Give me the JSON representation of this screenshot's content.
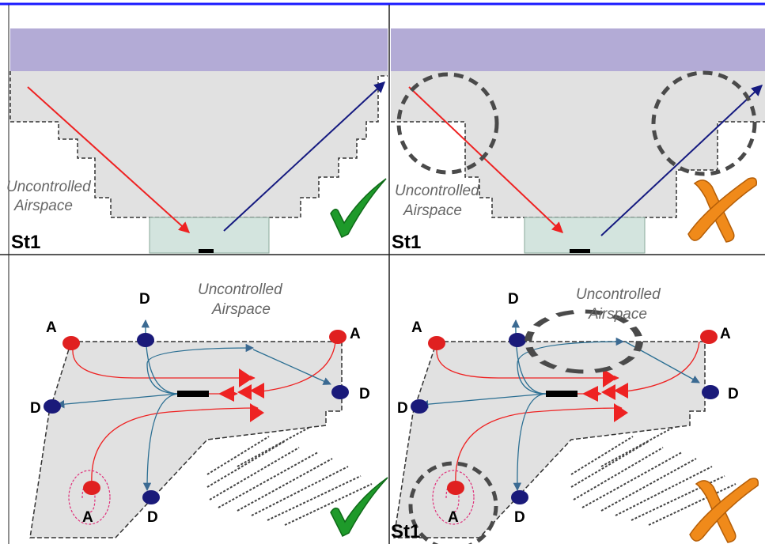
{
  "panels": [
    {
      "id": "top-left",
      "stage_label": "St1",
      "airspace_label": [
        "Uncontrolled",
        "Airspace"
      ],
      "verdict": "check"
    },
    {
      "id": "top-right",
      "stage_label": "St1",
      "airspace_label": [
        "Uncontrolled",
        "Airspace"
      ],
      "verdict": "cross"
    },
    {
      "id": "bottom-left",
      "stage_label": "",
      "airspace_label": [
        "Uncontrolled",
        "Airspace"
      ],
      "node_labels": {
        "arrival": "A",
        "departure": "D"
      },
      "verdict": "check"
    },
    {
      "id": "bottom-right",
      "stage_label": "St1",
      "airspace_label": [
        "Uncontrolled",
        "Airspace"
      ],
      "node_labels": {
        "arrival": "A",
        "departure": "D"
      },
      "verdict": "cross"
    }
  ],
  "colors": {
    "border_top": "#1a1aff",
    "upper_band": "#b3abd6",
    "controlled_airspace": "#e1e1e1",
    "zone_box": "#d3e4de",
    "arrival_arrow": "#ee2222",
    "departure_arrow": "#151a80",
    "route_blue": "#2a6e92",
    "node_red": "#e02020",
    "node_navy": "#1a1a7a",
    "check_green": "#1e9a2a",
    "cross_orange": "#f08a1a",
    "circle_dash": "#4a4a4a"
  }
}
